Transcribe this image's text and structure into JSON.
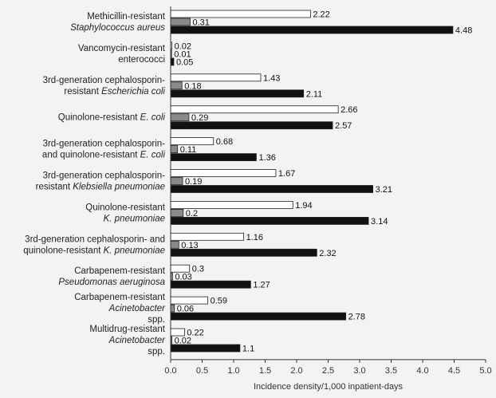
{
  "chart_data": {
    "type": "bar",
    "orientation": "horizontal",
    "categories": [
      [
        {
          "t": "Methicillin-resistant"
        },
        {
          "t": "Staphylococcus aureus",
          "i": true
        }
      ],
      [
        {
          "t": "Vancomycin-resistant"
        },
        {
          "t": "enterococci"
        }
      ],
      [
        {
          "t": "3rd-generation cephalosporin-"
        },
        {
          "t": "resistant "
        },
        {
          "t": "Escherichia coli",
          "i": true
        }
      ],
      [
        {
          "t": "Quinolone-resistant "
        },
        {
          "t": "E. coli",
          "i": true
        }
      ],
      [
        {
          "t": "3rd-generation cephalosporin-"
        },
        {
          "t": "and quinolone-resistant "
        },
        {
          "t": "E. coli",
          "i": true
        }
      ],
      [
        {
          "t": "3rd-generation cephalosporin-"
        },
        {
          "t": "resistant "
        },
        {
          "t": "Klebsiella pneumoniae",
          "i": true
        }
      ],
      [
        {
          "t": "Quinolone-resistant"
        },
        {
          "t": "K. pneumoniae",
          "i": true
        }
      ],
      [
        {
          "t": "3rd-generation cephalosporin- and"
        },
        {
          "t": "quinolone-resistant "
        },
        {
          "t": "K. pneumoniae",
          "i": true
        }
      ],
      [
        {
          "t": "Carbapenem-resistant"
        },
        {
          "t": "Pseudomonas aeruginosa",
          "i": true
        }
      ],
      [
        {
          "t": "Carbapenem-resistant"
        },
        {
          "t": "Acinetobacter",
          "i": true
        },
        {
          "t": " spp."
        }
      ],
      [
        {
          "t": "Multidrug-resistant"
        },
        {
          "t": "Acinetobacter",
          "i": true
        },
        {
          "t": " spp."
        }
      ]
    ],
    "series": [
      {
        "color": "#ffffff",
        "values": [
          2.22,
          0.02,
          1.43,
          2.66,
          0.68,
          1.67,
          1.94,
          1.16,
          0.3,
          0.59,
          0.22
        ]
      },
      {
        "color": "#8a8a8a",
        "values": [
          0.31,
          0.01,
          0.18,
          0.29,
          0.11,
          0.19,
          0.2,
          0.13,
          0.03,
          0.06,
          0.02
        ]
      },
      {
        "color": "#111111",
        "values": [
          4.48,
          0.05,
          2.11,
          2.57,
          1.36,
          3.21,
          3.14,
          2.32,
          1.27,
          2.78,
          1.1
        ]
      }
    ],
    "data_labels": [
      [
        "2.22",
        "0.02",
        "1.43",
        "2.66",
        "0.68",
        "1.67",
        "1.94",
        "1.16",
        "0.3",
        "0.59",
        "0.22"
      ],
      [
        "0.31",
        "0.01",
        "0.18",
        "0.29",
        "0.11",
        "0.19",
        "0.2",
        "0.13",
        "0.03",
        "0.06",
        "0.02"
      ],
      [
        "4.48",
        "0.05",
        "2.11",
        "2.57",
        "1.36",
        "3.21",
        "3.14",
        "2.32",
        "1.27",
        "2.78",
        "1.1"
      ]
    ],
    "xlim": [
      0,
      5
    ],
    "xticks": [
      "0.0",
      "0.5",
      "1.0",
      "1.5",
      "2.0",
      "2.5",
      "3.0",
      "3.5",
      "4.0",
      "4.5",
      "5.0"
    ],
    "xlabel": "Incidence density/1,000 inpatient-days",
    "grid": false,
    "legend": "none"
  }
}
